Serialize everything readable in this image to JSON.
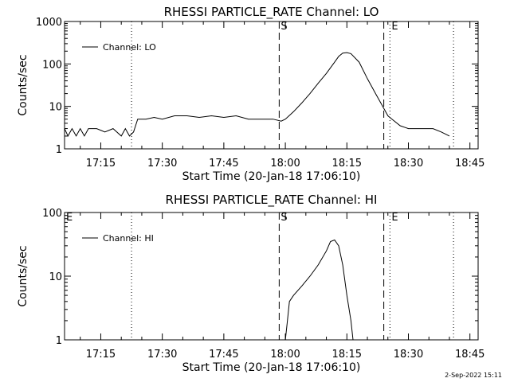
{
  "colors": {
    "background": "#ffffff",
    "foreground": "#000000"
  },
  "footer": {
    "date_stamp": "2-Sep-2022 15:11"
  },
  "chart_data": [
    {
      "type": "line",
      "title": "RHESSI PARTICLE_RATE Channel: LO",
      "xlabel": "Start Time (20-Jan-18 17:06:10)",
      "ylabel": "Counts/sec",
      "y_scale": "log",
      "ylim": [
        1,
        1000
      ],
      "xlim": [
        "17:06:10",
        "18:47:00"
      ],
      "x_ticks": [
        "17:15",
        "17:30",
        "17:45",
        "18:00",
        "18:15",
        "18:30",
        "18:45"
      ],
      "y_ticks": [
        "1",
        "10",
        "100",
        "1000"
      ],
      "legend": "top-left",
      "series": [
        {
          "name": "Channel: LO",
          "points": [
            [
              "17:06:10",
              3
            ],
            [
              "17:07:00",
              2
            ],
            [
              "17:08:00",
              3
            ],
            [
              "17:09:00",
              2
            ],
            [
              "17:10:00",
              3
            ],
            [
              "17:11:00",
              2
            ],
            [
              "17:12:00",
              3
            ],
            [
              "17:14:00",
              3
            ],
            [
              "17:16:00",
              2.5
            ],
            [
              "17:18:00",
              3
            ],
            [
              "17:20:00",
              2
            ],
            [
              "17:21:00",
              3
            ],
            [
              "17:22:00",
              2
            ],
            [
              "17:23:00",
              2.5
            ],
            [
              "17:24:00",
              5
            ],
            [
              "17:26:00",
              5
            ],
            [
              "17:28:00",
              5.5
            ],
            [
              "17:30:00",
              5
            ],
            [
              "17:33:00",
              6
            ],
            [
              "17:36:00",
              6
            ],
            [
              "17:39:00",
              5.5
            ],
            [
              "17:42:00",
              6
            ],
            [
              "17:45:00",
              5.5
            ],
            [
              "17:48:00",
              6
            ],
            [
              "17:51:00",
              5
            ],
            [
              "17:54:00",
              5
            ],
            [
              "17:57:00",
              5
            ],
            [
              "17:59:00",
              4.5
            ],
            [
              "18:00:00",
              5
            ],
            [
              "18:02:00",
              7.5
            ],
            [
              "18:04:00",
              12
            ],
            [
              "18:06:00",
              20
            ],
            [
              "18:08:00",
              35
            ],
            [
              "18:10:00",
              60
            ],
            [
              "18:12:00",
              110
            ],
            [
              "18:13:00",
              150
            ],
            [
              "18:14:00",
              180
            ],
            [
              "18:15:00",
              185
            ],
            [
              "18:16:00",
              175
            ],
            [
              "18:18:00",
              110
            ],
            [
              "18:20:00",
              45
            ],
            [
              "18:22:00",
              20
            ],
            [
              "18:24:00",
              9
            ],
            [
              "18:25:00",
              6
            ],
            [
              "18:26:00",
              5
            ],
            [
              "18:28:00",
              3.5
            ],
            [
              "18:30:00",
              3
            ],
            [
              "18:33:00",
              3
            ],
            [
              "18:36:00",
              3
            ],
            [
              "18:38:00",
              2.5
            ],
            [
              "18:40:00",
              2
            ]
          ]
        }
      ],
      "markers": [
        {
          "label": "",
          "time": "17:22:30",
          "style": "dotted"
        },
        {
          "label": "S",
          "time": "17:58:30",
          "style": "dashed"
        },
        {
          "label": "",
          "time": "18:24:00",
          "style": "dashed"
        },
        {
          "label": "E",
          "time": "18:25:30",
          "style": "dotted"
        },
        {
          "label": "",
          "time": "18:41:00",
          "style": "dotted"
        }
      ]
    },
    {
      "type": "line",
      "title": "RHESSI PARTICLE_RATE Channel: HI",
      "xlabel": "Start Time (20-Jan-18 17:06:10)",
      "ylabel": "Counts/sec",
      "y_scale": "log",
      "ylim": [
        1,
        100
      ],
      "xlim": [
        "17:06:10",
        "18:47:00"
      ],
      "x_ticks": [
        "17:15",
        "17:30",
        "17:45",
        "18:00",
        "18:15",
        "18:30",
        "18:45"
      ],
      "y_ticks": [
        "1",
        "10",
        "100"
      ],
      "legend": "top-left",
      "series": [
        {
          "name": "Channel: HI",
          "points": [
            [
              "18:00:00",
              1
            ],
            [
              "18:00:30",
              2
            ],
            [
              "18:01:00",
              4
            ],
            [
              "18:02:00",
              5
            ],
            [
              "18:04:00",
              7
            ],
            [
              "18:06:00",
              10
            ],
            [
              "18:08:00",
              15
            ],
            [
              "18:10:00",
              25
            ],
            [
              "18:11:00",
              35
            ],
            [
              "18:12:00",
              37
            ],
            [
              "18:13:00",
              30
            ],
            [
              "18:14:00",
              15
            ],
            [
              "18:15:00",
              5
            ],
            [
              "18:16:00",
              2
            ],
            [
              "18:16:30",
              1
            ]
          ]
        }
      ],
      "markers": [
        {
          "label": "E",
          "time": "17:06:10",
          "style": "none"
        },
        {
          "label": "",
          "time": "17:22:30",
          "style": "dotted"
        },
        {
          "label": "S",
          "time": "17:58:30",
          "style": "dashed"
        },
        {
          "label": "",
          "time": "18:24:00",
          "style": "dashed"
        },
        {
          "label": "E",
          "time": "18:25:30",
          "style": "dotted"
        },
        {
          "label": "",
          "time": "18:41:00",
          "style": "dotted"
        }
      ]
    }
  ]
}
